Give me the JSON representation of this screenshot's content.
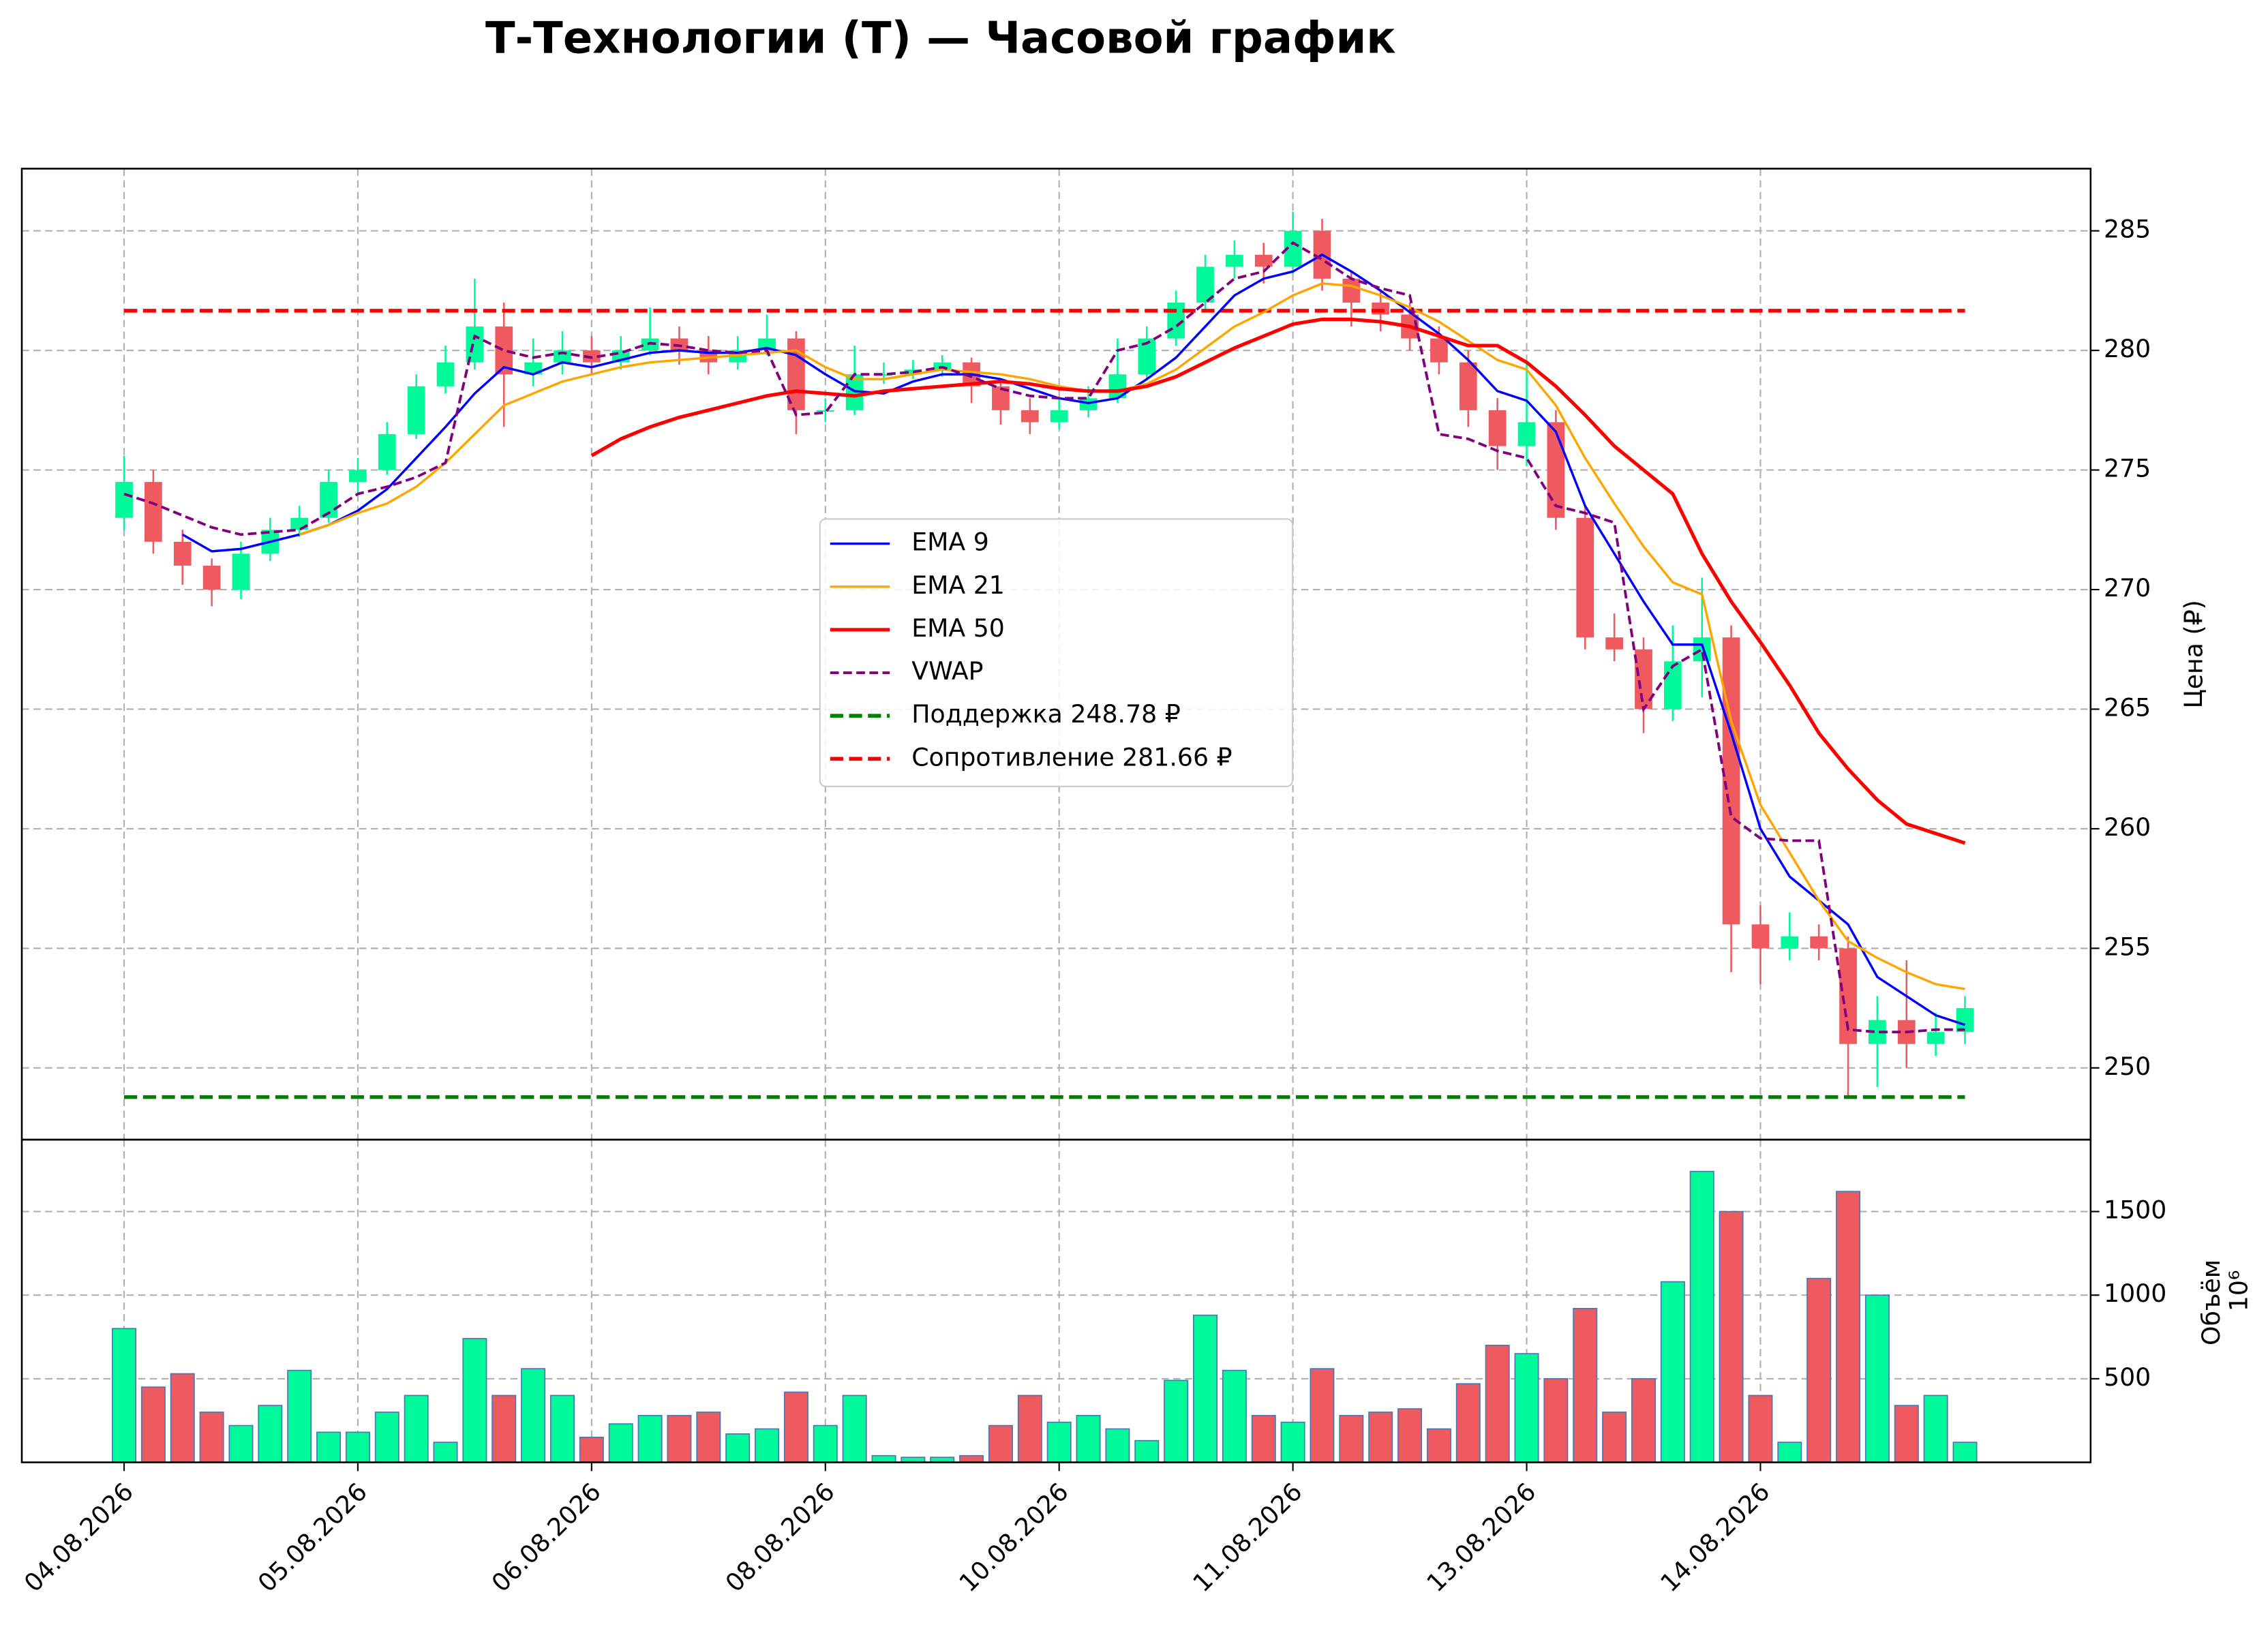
{
  "chart_data": {
    "type": "candlestick",
    "title": "Т-Технологии (T) — Часовой график",
    "y_label": "Цена (₽)",
    "volume_label": "Объём",
    "volume_offset_label": "10⁶",
    "x": [
      0,
      1,
      2,
      3,
      4,
      5,
      6,
      7,
      8,
      9,
      10,
      11,
      12,
      13,
      14,
      15,
      16,
      17,
      18,
      19,
      20,
      21,
      22,
      23,
      24,
      25,
      26,
      27,
      28,
      29,
      30,
      31,
      32,
      33,
      34,
      35,
      36,
      37,
      38,
      39,
      40,
      41,
      42,
      43,
      44,
      45,
      46,
      47,
      48,
      49,
      50,
      51,
      52,
      53,
      54,
      55,
      56,
      57,
      58,
      59,
      60,
      61,
      62,
      63
    ],
    "xlim": [
      -3.5,
      67.3
    ],
    "xticks": [
      {
        "value": 0,
        "label": "04.08.2026"
      },
      {
        "value": 8,
        "label": "05.08.2026"
      },
      {
        "value": 16,
        "label": "06.08.2026"
      },
      {
        "value": 24,
        "label": "08.08.2026"
      },
      {
        "value": 32,
        "label": "10.08.2026"
      },
      {
        "value": 40,
        "label": "11.08.2026"
      },
      {
        "value": 48,
        "label": "13.08.2026"
      },
      {
        "value": 56,
        "label": "14.08.2026"
      }
    ],
    "ylim": [
      247.0,
      287.6
    ],
    "yticks": [
      250,
      255,
      260,
      265,
      270,
      275,
      280,
      285
    ],
    "volume_ylim": [
      0,
      1930
    ],
    "volume_yticks": [
      500,
      1000,
      1500
    ],
    "grid": true,
    "up_color": "#00fa9a",
    "down_color": "#ee5a5f",
    "volume_edge_color": "#4a78b5",
    "open": [
      273.0,
      274.5,
      272.0,
      271.0,
      270.0,
      271.5,
      272.5,
      273.0,
      274.5,
      275.0,
      276.5,
      278.5,
      279.5,
      281.0,
      279.0,
      279.5,
      280.0,
      279.5,
      280.0,
      280.5,
      280.0,
      279.5,
      280.0,
      280.5,
      277.5,
      277.5,
      279.0,
      279.0,
      279.2,
      279.5,
      278.5,
      277.5,
      277.0,
      277.5,
      278.0,
      279.0,
      280.5,
      282.0,
      283.5,
      284.0,
      283.5,
      285.0,
      283.0,
      282.0,
      281.5,
      280.5,
      279.5,
      277.5,
      276.0,
      277.0,
      273.0,
      268.0,
      267.5,
      265.0,
      267.0,
      268.0,
      256.0,
      255.0,
      255.5,
      255.0,
      251.0,
      252.0,
      251.0,
      251.5
    ],
    "high": [
      275.6,
      275.0,
      272.5,
      271.3,
      272.0,
      273.0,
      273.5,
      275.0,
      275.5,
      277.0,
      279.0,
      280.2,
      283.0,
      282.0,
      280.5,
      280.8,
      280.6,
      280.6,
      281.8,
      281.0,
      280.6,
      280.6,
      281.5,
      280.8,
      278.0,
      280.2,
      279.5,
      279.6,
      279.8,
      279.7,
      278.8,
      278.0,
      278.0,
      278.5,
      280.5,
      281.0,
      282.5,
      284.0,
      284.6,
      284.5,
      285.8,
      285.5,
      283.3,
      282.5,
      282.0,
      281.0,
      280.0,
      278.0,
      279.5,
      277.5,
      273.5,
      269.0,
      268.0,
      268.5,
      270.5,
      268.5,
      256.8,
      256.5,
      256.0,
      255.5,
      253.0,
      254.5,
      252.3,
      253.0
    ],
    "low": [
      272.5,
      271.5,
      270.2,
      269.3,
      269.6,
      271.2,
      272.2,
      272.8,
      274.0,
      274.8,
      276.3,
      278.2,
      279.2,
      276.8,
      278.5,
      279.0,
      279.0,
      279.2,
      279.8,
      279.4,
      279.0,
      279.2,
      279.8,
      276.5,
      277.0,
      277.3,
      278.6,
      278.8,
      278.9,
      277.8,
      276.9,
      276.5,
      276.7,
      277.2,
      277.8,
      278.8,
      280.2,
      281.7,
      283.0,
      282.8,
      283.2,
      282.5,
      281.0,
      280.8,
      280.0,
      279.0,
      276.8,
      275.0,
      275.2,
      272.5,
      267.5,
      267.0,
      264.0,
      264.5,
      265.5,
      254.0,
      253.5,
      254.5,
      254.5,
      248.8,
      249.2,
      250.0,
      250.5,
      251.0
    ],
    "close": [
      274.5,
      272.0,
      271.0,
      270.0,
      271.5,
      272.5,
      273.0,
      274.5,
      275.0,
      276.5,
      278.5,
      279.5,
      281.0,
      279.0,
      279.5,
      280.0,
      279.5,
      280.0,
      280.5,
      280.0,
      279.5,
      280.0,
      280.5,
      277.5,
      277.5,
      279.0,
      279.0,
      279.2,
      279.5,
      278.5,
      277.5,
      277.0,
      277.5,
      278.0,
      279.0,
      280.5,
      282.0,
      283.5,
      284.0,
      283.5,
      285.0,
      283.0,
      282.0,
      281.5,
      280.5,
      279.5,
      277.5,
      276.0,
      277.0,
      273.0,
      268.0,
      267.5,
      265.0,
      267.0,
      268.0,
      256.0,
      255.0,
      255.5,
      255.0,
      251.0,
      252.0,
      251.0,
      251.5,
      252.5
    ],
    "volume": [
      800,
      450,
      530,
      300,
      220,
      340,
      550,
      180,
      180,
      300,
      400,
      120,
      740,
      400,
      560,
      400,
      150,
      230,
      280,
      280,
      300,
      170,
      200,
      420,
      220,
      400,
      40,
      30,
      30,
      40,
      220,
      400,
      240,
      280,
      200,
      130,
      490,
      880,
      550,
      280,
      240,
      560,
      280,
      300,
      320,
      200,
      470,
      700,
      650,
      500,
      920,
      300,
      500,
      1080,
      1740,
      1500,
      400,
      120,
      1100,
      1620,
      1000,
      340,
      400,
      120
    ],
    "series": [
      {
        "name": "EMA 9",
        "color": "#0000ff",
        "width": 1.6,
        "style": "solid",
        "values": [
          null,
          null,
          272.3,
          271.6,
          271.7,
          272.0,
          272.3,
          272.7,
          273.3,
          274.2,
          275.5,
          276.8,
          278.2,
          279.3,
          279.0,
          279.5,
          279.3,
          279.6,
          279.9,
          280.0,
          279.9,
          279.9,
          280.1,
          279.8,
          279.0,
          278.3,
          278.2,
          278.7,
          279.0,
          279.0,
          278.8,
          278.4,
          278.0,
          277.8,
          278.0,
          278.8,
          279.7,
          281.0,
          282.3,
          283.0,
          283.3,
          284.0,
          283.3,
          282.5,
          281.6,
          280.7,
          279.6,
          278.3,
          277.9,
          276.6,
          273.5,
          271.5,
          269.5,
          267.7,
          267.7,
          264.0,
          260.0,
          258.0,
          257.0,
          256.0,
          253.8,
          253.0,
          252.2,
          251.8
        ]
      },
      {
        "name": "EMA 21",
        "color": "#ffa500",
        "width": 1.6,
        "style": "solid",
        "values": [
          null,
          null,
          null,
          null,
          null,
          null,
          272.3,
          272.7,
          273.2,
          273.6,
          274.3,
          275.3,
          276.5,
          277.7,
          278.2,
          278.7,
          279.0,
          279.3,
          279.5,
          279.6,
          279.7,
          279.8,
          279.9,
          280.0,
          279.3,
          278.8,
          278.8,
          279.0,
          279.2,
          279.1,
          279.0,
          278.8,
          278.5,
          278.3,
          278.3,
          278.6,
          279.2,
          280.1,
          281.0,
          281.6,
          282.3,
          282.8,
          282.7,
          282.3,
          281.8,
          281.2,
          280.4,
          279.6,
          279.2,
          277.7,
          275.5,
          273.6,
          271.8,
          270.3,
          269.8,
          264.5,
          261.0,
          259.0,
          257.0,
          255.3,
          254.6,
          254.0,
          253.5,
          253.3
        ]
      },
      {
        "name": "EMA 50",
        "color": "#ff0000",
        "width": 2.4,
        "style": "solid",
        "values": [
          null,
          null,
          null,
          null,
          null,
          null,
          null,
          null,
          null,
          null,
          null,
          null,
          null,
          null,
          null,
          null,
          275.6,
          276.3,
          276.8,
          277.2,
          277.5,
          277.8,
          278.1,
          278.3,
          278.2,
          278.1,
          278.3,
          278.4,
          278.5,
          278.6,
          278.7,
          278.6,
          278.4,
          278.3,
          278.3,
          278.5,
          278.9,
          279.5,
          280.1,
          280.6,
          281.1,
          281.3,
          281.3,
          281.2,
          281.0,
          280.6,
          280.2,
          280.2,
          279.5,
          278.5,
          277.3,
          276.0,
          275.0,
          274.0,
          271.5,
          269.5,
          267.8,
          266.0,
          264.0,
          262.5,
          261.2,
          260.2,
          259.8,
          259.4
        ]
      },
      {
        "name": "VWAP",
        "color": "#800080",
        "width": 1.8,
        "style": "dashed",
        "values": [
          274.0,
          273.6,
          273.1,
          272.6,
          272.3,
          272.4,
          272.5,
          273.2,
          274.0,
          274.3,
          274.7,
          275.3,
          280.6,
          280.0,
          279.7,
          279.9,
          279.7,
          279.9,
          280.3,
          280.2,
          280.0,
          279.9,
          280.0,
          277.3,
          277.4,
          279.0,
          279.0,
          279.1,
          279.3,
          278.9,
          278.4,
          278.1,
          278.0,
          278.0,
          280.0,
          280.3,
          281.0,
          282.0,
          283.0,
          283.3,
          284.5,
          283.8,
          283.0,
          282.6,
          282.3,
          276.5,
          276.3,
          275.8,
          275.5,
          273.5,
          273.2,
          272.8,
          265.0,
          266.8,
          267.5,
          260.5,
          259.6,
          259.5,
          259.5,
          251.6,
          251.5,
          251.5,
          251.6,
          251.6
        ]
      }
    ],
    "levels": [
      {
        "name": "Поддержка 248.78 ₽",
        "value": 248.78,
        "color": "#008000"
      },
      {
        "name": "Сопротивление 281.66 ₽",
        "value": 281.66,
        "color": "#ff0000"
      }
    ]
  }
}
